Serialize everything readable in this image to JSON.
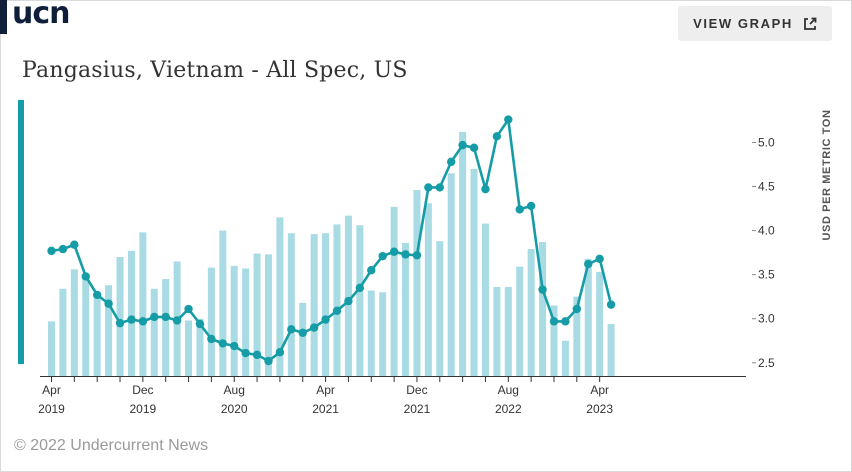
{
  "header": {
    "logo_text": "ucn",
    "view_graph_label": "VIEW GRAPH"
  },
  "title": "Pangasius, Vietnam - All Spec, US",
  "footer": "© 2022 Undercurrent News",
  "colors": {
    "line": "#169ca6",
    "bar": "#a8dbe3",
    "accent": "#169ca6",
    "logo": "#0f1f3a"
  },
  "chart_data": {
    "type": "bar+line",
    "ylabel": "USD PER METRIC TON",
    "ylim": [
      2.35,
      5.55
    ],
    "yticks": [
      2.5,
      3.0,
      3.5,
      4.0,
      4.5,
      5.0
    ],
    "ytick_labels": [
      "2.5",
      "3.0",
      "3.5",
      "4.0",
      "4.5",
      "5.0"
    ],
    "x_tick_labels": [
      {
        "index": 0,
        "month": "Apr",
        "year": "2019"
      },
      {
        "index": 8,
        "month": "Dec",
        "year": "2019"
      },
      {
        "index": 16,
        "month": "Aug",
        "year": "2020"
      },
      {
        "index": 24,
        "month": "Apr",
        "year": "2021"
      },
      {
        "index": 32,
        "month": "Dec",
        "year": "2021"
      },
      {
        "index": 40,
        "month": "Aug",
        "year": "2022"
      },
      {
        "index": 48,
        "month": "Apr",
        "year": "2023"
      }
    ],
    "x": [
      "2019-04",
      "2019-05",
      "2019-06",
      "2019-07",
      "2019-08",
      "2019-09",
      "2019-10",
      "2019-11",
      "2019-12",
      "2020-01",
      "2020-02",
      "2020-03",
      "2020-04",
      "2020-05",
      "2020-06",
      "2020-07",
      "2020-08",
      "2020-09",
      "2020-10",
      "2020-11",
      "2020-12",
      "2021-01",
      "2021-02",
      "2021-03",
      "2021-04",
      "2021-05",
      "2021-06",
      "2021-07",
      "2021-08",
      "2021-09",
      "2021-10",
      "2021-11",
      "2021-12",
      "2022-01",
      "2022-02",
      "2022-03",
      "2022-04",
      "2022-05",
      "2022-06",
      "2022-07",
      "2022-08",
      "2022-09",
      "2022-10",
      "2022-11",
      "2022-12",
      "2023-01",
      "2023-02",
      "2023-03",
      "2023-04",
      "2023-05"
    ],
    "series": [
      {
        "kind": "bar",
        "values": [
          2.97,
          3.34,
          3.56,
          3.5,
          3.29,
          3.38,
          3.7,
          3.77,
          3.98,
          3.34,
          3.45,
          3.65,
          2.98,
          3.0,
          3.58,
          4.0,
          3.6,
          3.57,
          3.74,
          3.73,
          4.15,
          3.97,
          3.18,
          3.96,
          3.97,
          4.07,
          4.17,
          4.06,
          3.32,
          3.3,
          4.27,
          3.86,
          4.46,
          4.31,
          3.88,
          4.65,
          5.12,
          4.7,
          4.08,
          3.36,
          3.36,
          3.59,
          3.79,
          3.87,
          3.15,
          2.75,
          3.25,
          3.68,
          3.53,
          2.94
        ]
      },
      {
        "kind": "line",
        "values": [
          3.77,
          3.79,
          3.84,
          3.48,
          3.27,
          3.17,
          2.95,
          2.99,
          2.97,
          3.02,
          3.02,
          2.98,
          3.11,
          2.94,
          2.77,
          2.72,
          2.69,
          2.61,
          2.59,
          2.52,
          2.62,
          2.88,
          2.84,
          2.9,
          2.99,
          3.09,
          3.2,
          3.35,
          3.55,
          3.71,
          3.76,
          3.73,
          3.72,
          4.49,
          4.49,
          4.78,
          4.97,
          4.94,
          4.47,
          5.07,
          5.26,
          4.24,
          4.28,
          3.33,
          2.97,
          2.97,
          3.11,
          3.62,
          3.68,
          3.16
        ]
      }
    ]
  }
}
